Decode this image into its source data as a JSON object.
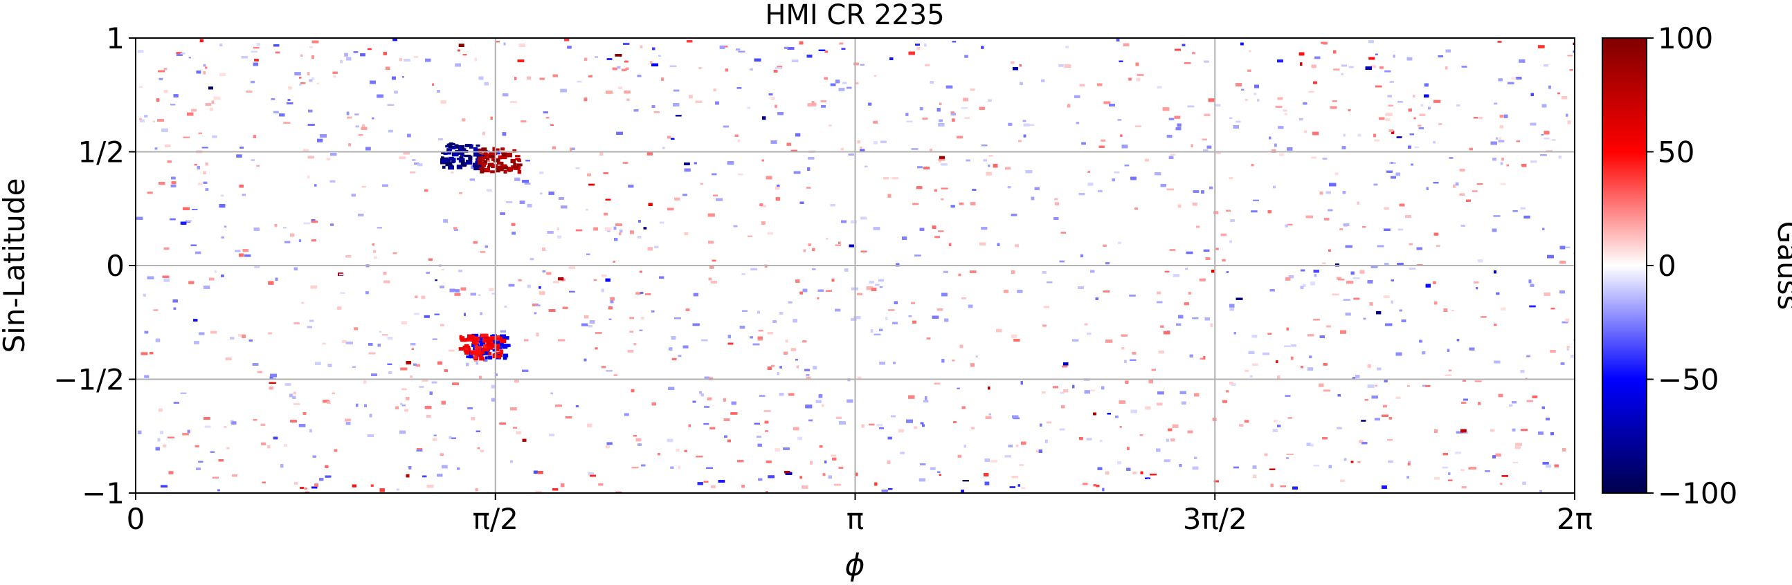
{
  "chart_data": {
    "type": "heatmap",
    "title": "HMI CR 2235",
    "xlabel": "ϕ",
    "ylabel": "Sin-Latitude",
    "xlim": [
      0,
      6.283185
    ],
    "ylim": [
      -1,
      1
    ],
    "x_ticks": [
      {
        "value": 0,
        "label": "0"
      },
      {
        "value": 1.570796,
        "label": "π/2"
      },
      {
        "value": 3.141593,
        "label": "π"
      },
      {
        "value": 4.712389,
        "label": "3π/2"
      },
      {
        "value": 6.283185,
        "label": "2π"
      }
    ],
    "y_ticks": [
      {
        "value": 1,
        "label": "1"
      },
      {
        "value": 0.5,
        "label": "1/2"
      },
      {
        "value": 0,
        "label": "0"
      },
      {
        "value": -0.5,
        "label": "−1/2"
      },
      {
        "value": -1,
        "label": "−1"
      }
    ],
    "grid": true,
    "colorbar": {
      "label": "Gauss",
      "range": [
        -100,
        100
      ],
      "colormap": "seismic",
      "ticks": [
        {
          "value": 100,
          "label": "100"
        },
        {
          "value": 50,
          "label": "50"
        },
        {
          "value": 0,
          "label": "0"
        },
        {
          "value": -50,
          "label": "−50"
        },
        {
          "value": -100,
          "label": "−100"
        }
      ]
    },
    "features": [
      {
        "name": "active region negative polarity",
        "phi": 1.42,
        "sinlat": 0.49,
        "value": -100
      },
      {
        "name": "active region positive polarity",
        "phi": 1.58,
        "sinlat": 0.47,
        "value": 100
      },
      {
        "name": "southern bipole",
        "phi": 1.53,
        "sinlat": -0.35,
        "value": -60
      },
      {
        "name": "southern bipole",
        "phi": 1.5,
        "sinlat": -0.35,
        "value": 60
      }
    ]
  },
  "colors": {
    "negative_max": "#00004c",
    "negative_mid": "#0000ff",
    "zero": "#ffffff",
    "positive_mid": "#ff0000",
    "positive_max": "#800000",
    "grid": "#b0b0b0"
  }
}
